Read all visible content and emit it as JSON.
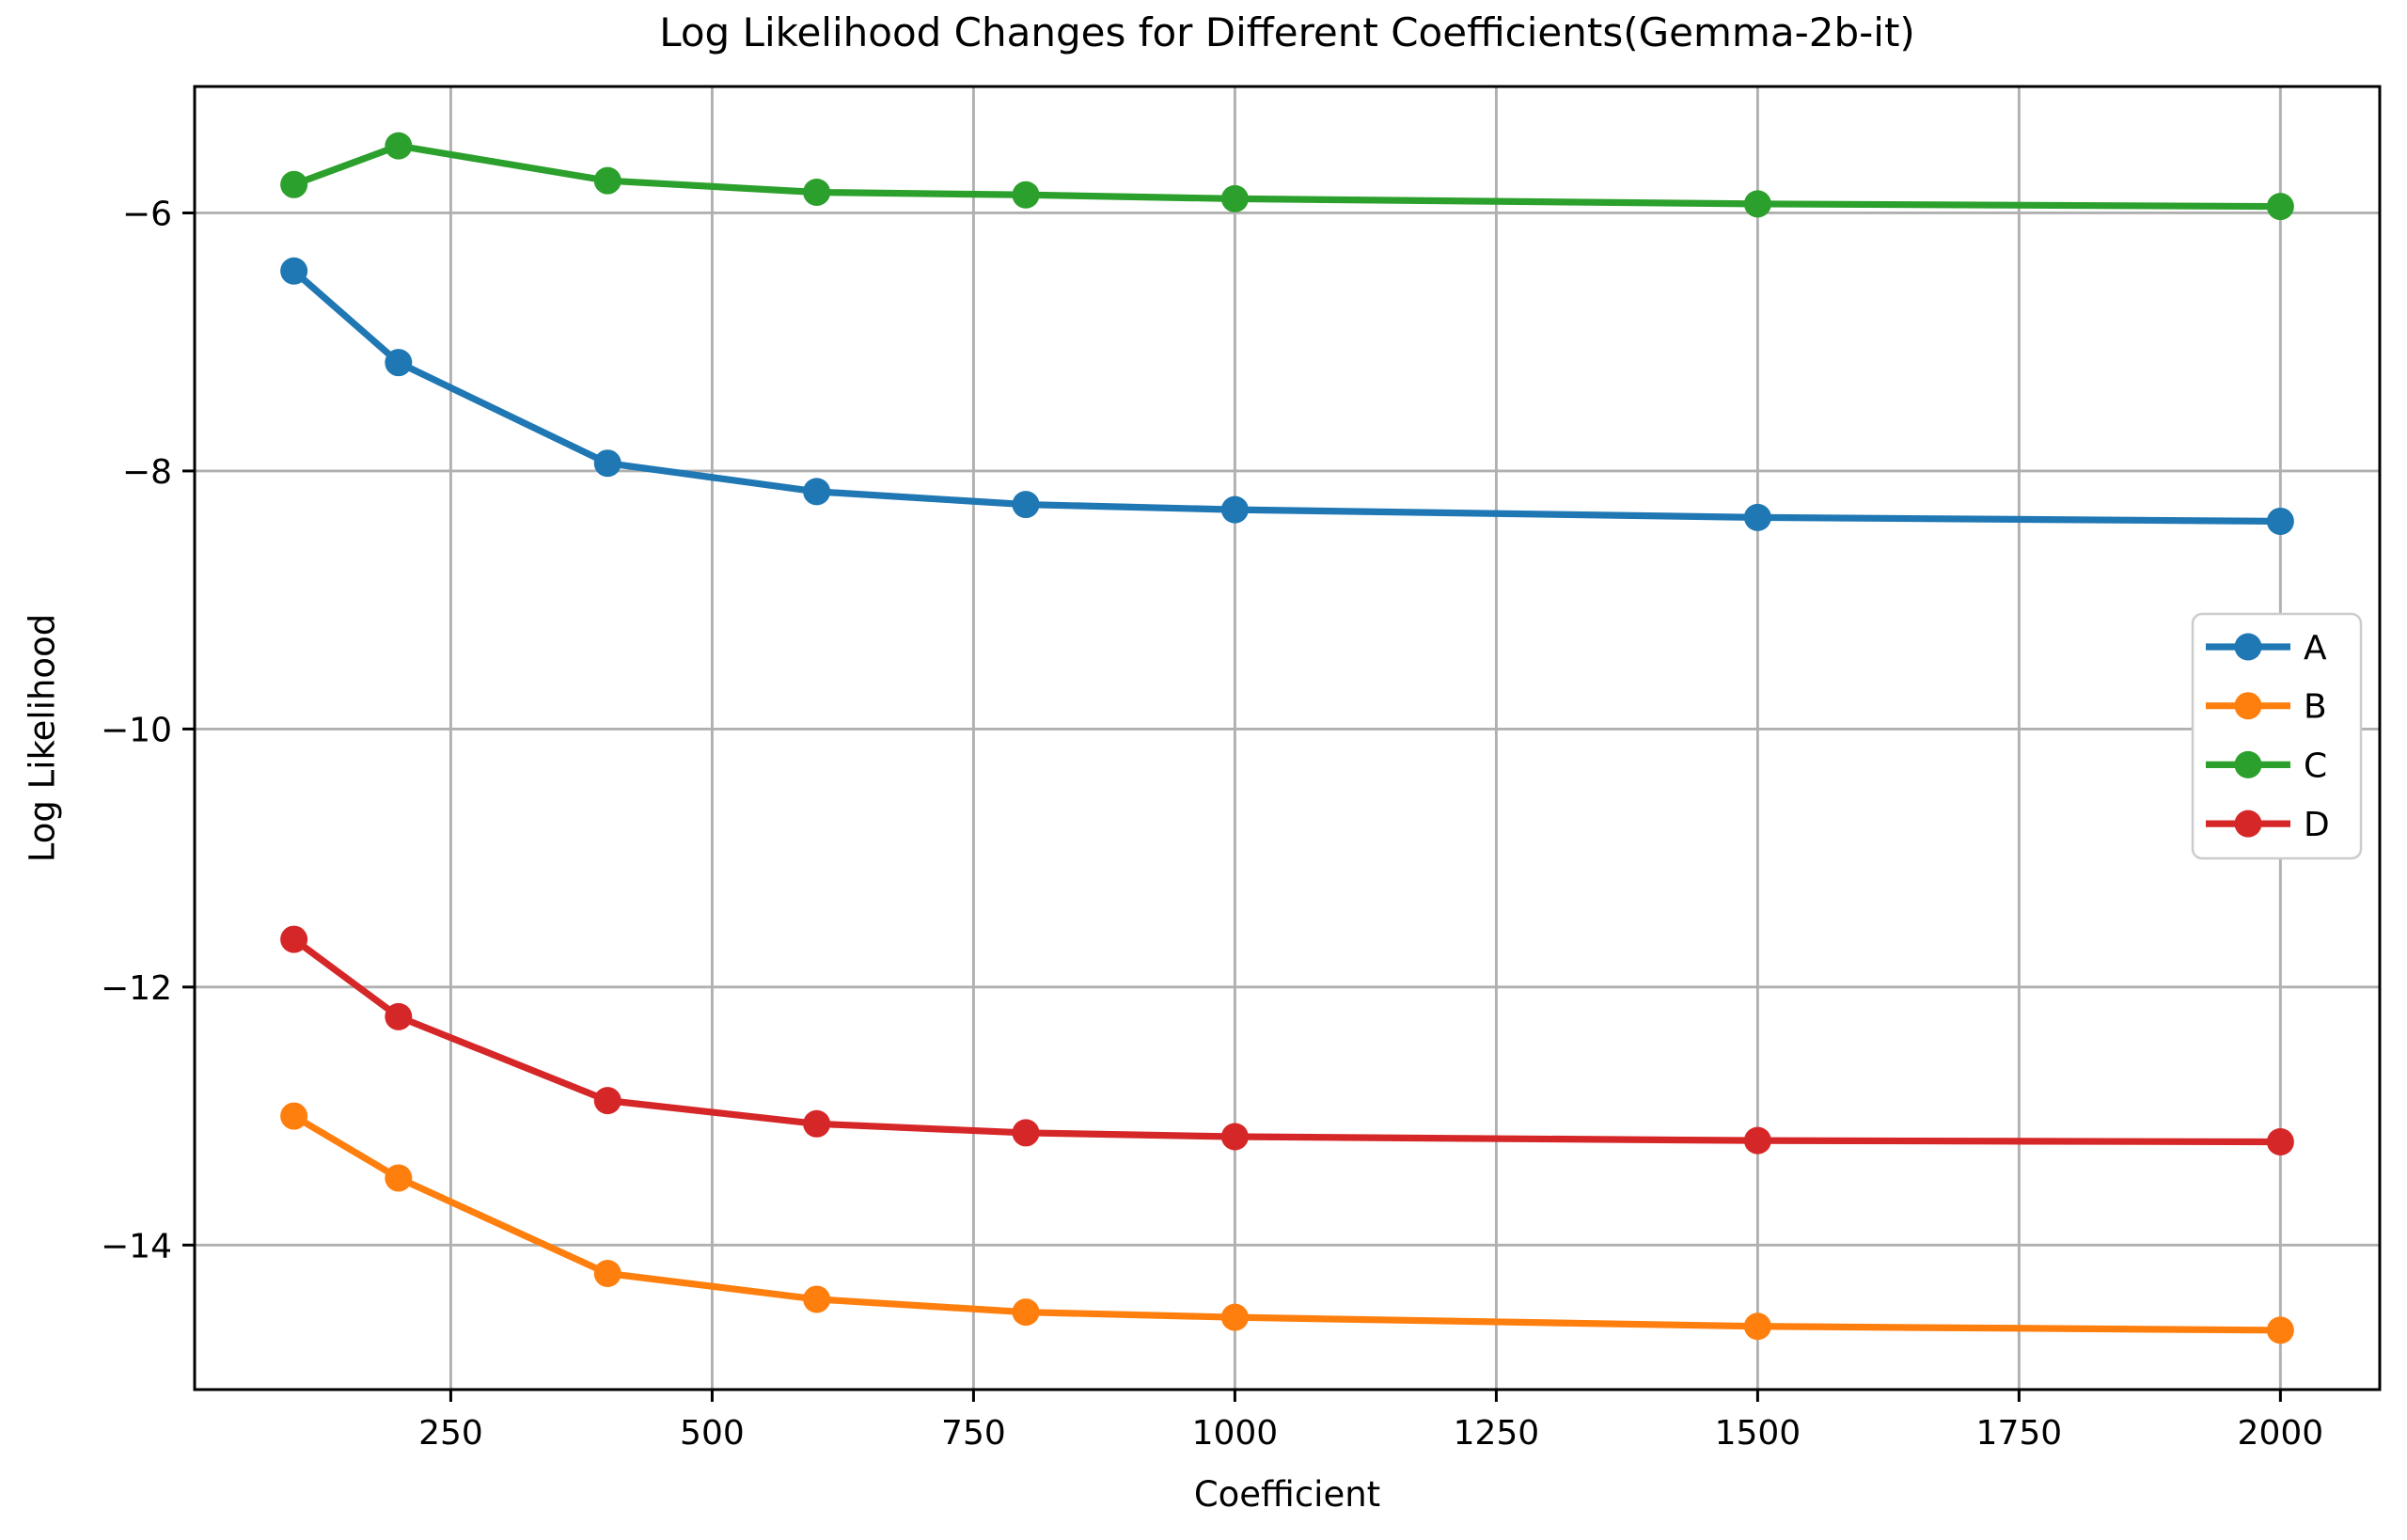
{
  "chart_data": {
    "type": "line",
    "title": "Log Likelihood Changes for Different Coefficients(Gemma-2b-it)",
    "xlabel": "Coefficient",
    "ylabel": "Log Likelihood",
    "x": [
      100,
      200,
      400,
      600,
      800,
      1000,
      1500,
      2000
    ],
    "series": [
      {
        "name": "A",
        "color": "#1f77b4",
        "values": [
          -6.45,
          -7.16,
          -7.94,
          -8.16,
          -8.26,
          -8.3,
          -8.36,
          -8.39
        ]
      },
      {
        "name": "B",
        "color": "#ff7f0e",
        "values": [
          -13.0,
          -13.48,
          -14.22,
          -14.42,
          -14.52,
          -14.56,
          -14.63,
          -14.66
        ]
      },
      {
        "name": "C",
        "color": "#2ca02c",
        "values": [
          -5.78,
          -5.48,
          -5.75,
          -5.84,
          -5.86,
          -5.89,
          -5.93,
          -5.95
        ]
      },
      {
        "name": "D",
        "color": "#d62728",
        "values": [
          -11.63,
          -12.23,
          -12.88,
          -13.06,
          -13.13,
          -13.16,
          -13.19,
          -13.2
        ]
      }
    ],
    "xticks": [
      250,
      500,
      750,
      1000,
      1250,
      1500,
      1750,
      2000
    ],
    "yticks": [
      -6,
      -8,
      -10,
      -12,
      -14
    ],
    "xlim": [
      5,
      2095
    ],
    "ylim": [
      -15.12,
      -5.02
    ],
    "grid": true,
    "grid_color": "#b0b0b0",
    "spine_color": "#000000",
    "background_color": "#ffffff",
    "legend_position": "center right",
    "legend_labels": [
      "A",
      "B",
      "C",
      "D"
    ],
    "legend_edge_color": "#cccccc"
  }
}
